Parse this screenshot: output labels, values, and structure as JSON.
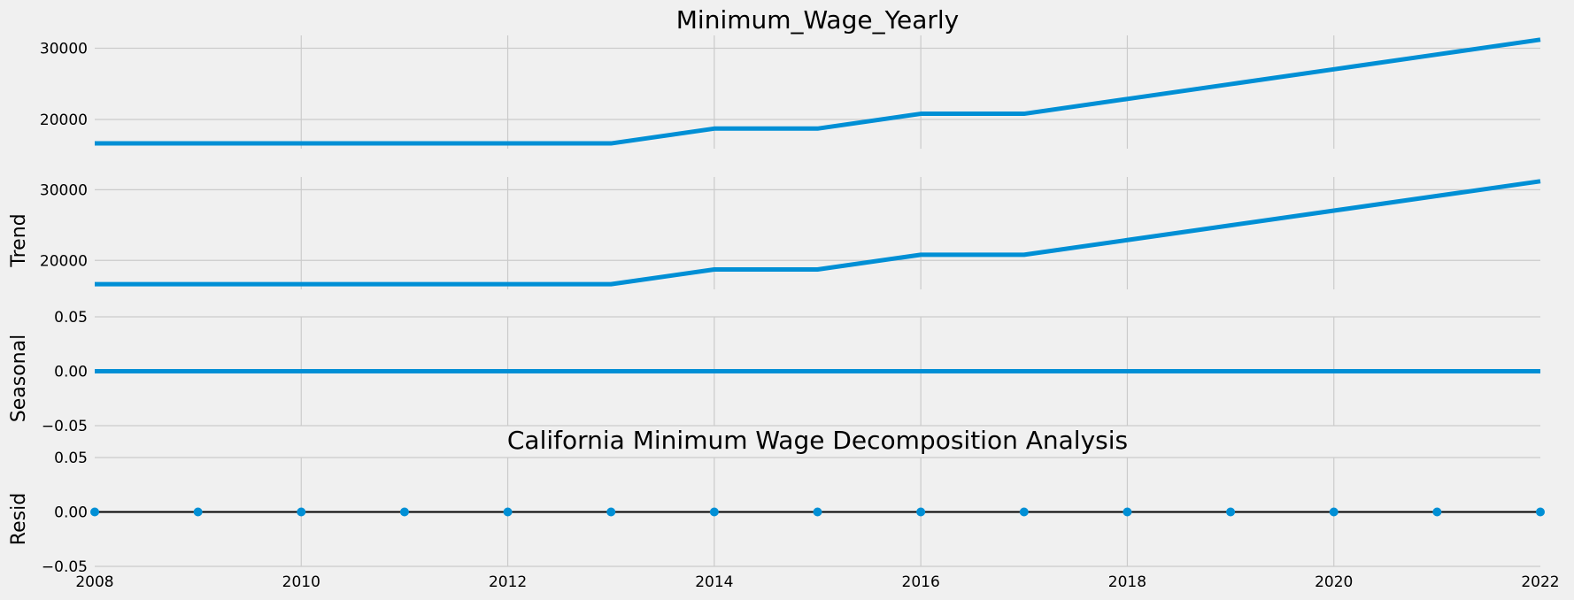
{
  "chart_data": [
    {
      "type": "line",
      "title": "Minimum_Wage_Yearly",
      "ylabel": "",
      "x": [
        2008,
        2009,
        2010,
        2011,
        2012,
        2013,
        2014,
        2015,
        2016,
        2017,
        2018,
        2019,
        2020,
        2021,
        2022
      ],
      "series": [
        {
          "values": [
            16640,
            16640,
            16640,
            16640,
            16640,
            16640,
            18720,
            18720,
            20800,
            20800,
            22880,
            24960,
            27040,
            29120,
            31200
          ]
        }
      ],
      "xlim": [
        2008,
        2022
      ],
      "ylim": [
        15900,
        31800
      ],
      "yticks": [
        20000,
        30000
      ],
      "ytick_labels": [
        "20000",
        "30000"
      ],
      "grid": true
    },
    {
      "type": "line",
      "title": "",
      "ylabel": "Trend",
      "x": [
        2008,
        2009,
        2010,
        2011,
        2012,
        2013,
        2014,
        2015,
        2016,
        2017,
        2018,
        2019,
        2020,
        2021,
        2022
      ],
      "series": [
        {
          "values": [
            16640,
            16640,
            16640,
            16640,
            16640,
            16640,
            18720,
            18720,
            20800,
            20800,
            22880,
            24960,
            27040,
            29120,
            31200
          ]
        }
      ],
      "xlim": [
        2008,
        2022
      ],
      "ylim": [
        15900,
        31800
      ],
      "yticks": [
        20000,
        30000
      ],
      "ytick_labels": [
        "20000",
        "30000"
      ],
      "grid": true
    },
    {
      "type": "line",
      "title": "",
      "ylabel": "Seasonal",
      "x": [
        2008,
        2009,
        2010,
        2011,
        2012,
        2013,
        2014,
        2015,
        2016,
        2017,
        2018,
        2019,
        2020,
        2021,
        2022
      ],
      "series": [
        {
          "values": [
            0,
            0,
            0,
            0,
            0,
            0,
            0,
            0,
            0,
            0,
            0,
            0,
            0,
            0,
            0
          ]
        }
      ],
      "xlim": [
        2008,
        2022
      ],
      "ylim": [
        -0.05,
        0.05
      ],
      "yticks": [
        -0.05,
        0.0,
        0.05
      ],
      "ytick_labels": [
        "−0.05",
        "0.00",
        "0.05"
      ],
      "grid": true
    },
    {
      "type": "scatter",
      "title": "California Minimum Wage Decomposition Analysis",
      "ylabel": "Resid",
      "xlabel": "",
      "x": [
        2008,
        2009,
        2010,
        2011,
        2012,
        2013,
        2014,
        2015,
        2016,
        2017,
        2018,
        2019,
        2020,
        2021,
        2022
      ],
      "series": [
        {
          "values": [
            0,
            0,
            0,
            0,
            0,
            0,
            0,
            0,
            0,
            0,
            0,
            0,
            0,
            0,
            0
          ]
        }
      ],
      "xlim": [
        2008,
        2022
      ],
      "ylim": [
        -0.05,
        0.05
      ],
      "yticks": [
        -0.05,
        0.0,
        0.05
      ],
      "ytick_labels": [
        "−0.05",
        "0.00",
        "0.05"
      ],
      "xticks": [
        2008,
        2010,
        2012,
        2014,
        2016,
        2018,
        2020,
        2022
      ],
      "xtick_labels": [
        "2008",
        "2010",
        "2012",
        "2014",
        "2016",
        "2018",
        "2020",
        "2022"
      ],
      "hline": 0,
      "grid": true
    }
  ],
  "colors": {
    "series": "#008fd5",
    "grid": "#cbcbcb",
    "background": "#f0f0f0",
    "zero_line": "#000000"
  }
}
